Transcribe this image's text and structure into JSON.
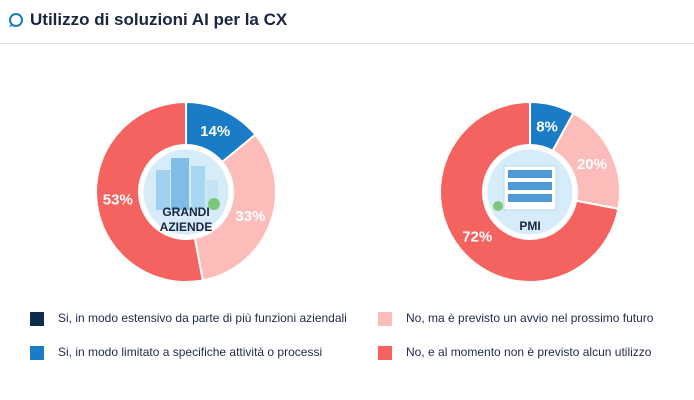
{
  "header": {
    "title": "Utilizzo di soluzioni AI per la CX"
  },
  "colors": {
    "dark_navy": "#0d2c4e",
    "blue": "#1a7bc6",
    "light_pink": "#fbbcba",
    "coral": "#f4635f"
  },
  "chart_data": [
    {
      "type": "pie",
      "style": "donut",
      "title": "",
      "center_label": [
        "GRANDI",
        "AZIENDE"
      ],
      "slices": [
        {
          "key": "limitato",
          "value": 14,
          "label": "14%"
        },
        {
          "key": "previsto",
          "value": 33,
          "label": "33%"
        },
        {
          "key": "nessuno",
          "value": 53,
          "label": "53%"
        }
      ]
    },
    {
      "type": "pie",
      "style": "donut",
      "title": "",
      "center_label": [
        "PMI"
      ],
      "slices": [
        {
          "key": "limitato",
          "value": 8,
          "label": "8%"
        },
        {
          "key": "previsto",
          "value": 20,
          "label": "20%"
        },
        {
          "key": "nessuno",
          "value": 72,
          "label": "72%"
        }
      ]
    }
  ],
  "legend": [
    {
      "key": "estensivo",
      "label": "Si, in modo estensivo da parte di più funzioni aziendali",
      "color": "#0d2c4e"
    },
    {
      "key": "limitato",
      "label": "Si, in modo limitato a specifiche attività o processi",
      "color": "#1a7bc6"
    },
    {
      "key": "previsto",
      "label": "No, ma è previsto un avvio nel prossimo futuro",
      "color": "#fbbcba"
    },
    {
      "key": "nessuno",
      "label": "No, e al momento non è previsto alcun utilizzo",
      "color": "#f4635f"
    }
  ]
}
